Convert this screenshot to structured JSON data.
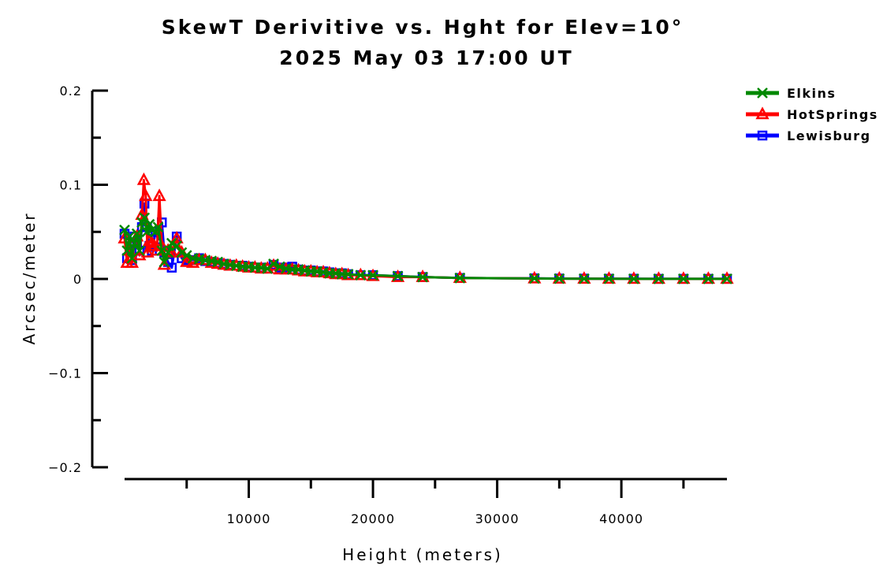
{
  "chart_data": {
    "type": "line",
    "title": "SkewT Derivitive vs. Hght for Elev=10°",
    "subtitle": "2025 May 03 17:00 UT",
    "xlabel": "Height (meters)",
    "ylabel": "Arcsec/meter",
    "xlim": [
      0,
      48500
    ],
    "ylim": [
      -0.2,
      0.2
    ],
    "x_ticks": [
      10000,
      20000,
      30000,
      40000
    ],
    "x_tick_labels": [
      "10000",
      "20000",
      "30000",
      "40000"
    ],
    "y_ticks": [
      -0.2,
      -0.1,
      0,
      0.1,
      0.2
    ],
    "y_tick_labels": [
      "−0.2",
      "−0.1",
      "0",
      "0.1",
      "0.2"
    ],
    "grid": false,
    "legend_position": "top-right",
    "series": [
      {
        "name": "Elkins",
        "color": "#008800",
        "marker": "x",
        "points": [
          [
            0,
            0.052
          ],
          [
            200,
            0.03
          ],
          [
            400,
            0.045
          ],
          [
            600,
            0.022
          ],
          [
            800,
            0.038
          ],
          [
            1000,
            0.048
          ],
          [
            1200,
            0.03
          ],
          [
            1400,
            0.06
          ],
          [
            1600,
            0.065
          ],
          [
            1800,
            0.05
          ],
          [
            2000,
            0.058
          ],
          [
            2200,
            0.052
          ],
          [
            2500,
            0.05
          ],
          [
            2700,
            0.055
          ],
          [
            3000,
            0.03
          ],
          [
            3200,
            0.018
          ],
          [
            3500,
            0.028
          ],
          [
            3800,
            0.038
          ],
          [
            4200,
            0.035
          ],
          [
            4600,
            0.028
          ],
          [
            5000,
            0.025
          ],
          [
            5500,
            0.022
          ],
          [
            6000,
            0.021
          ],
          [
            6500,
            0.02
          ],
          [
            7000,
            0.019
          ],
          [
            7500,
            0.018
          ],
          [
            8000,
            0.016
          ],
          [
            8500,
            0.015
          ],
          [
            9000,
            0.014
          ],
          [
            9500,
            0.013
          ],
          [
            10000,
            0.013
          ],
          [
            10500,
            0.012
          ],
          [
            11000,
            0.012
          ],
          [
            11500,
            0.011
          ],
          [
            12000,
            0.016
          ],
          [
            12500,
            0.013
          ],
          [
            13000,
            0.011
          ],
          [
            13500,
            0.01
          ],
          [
            14000,
            0.01
          ],
          [
            14500,
            0.009
          ],
          [
            15000,
            0.008
          ],
          [
            15500,
            0.008
          ],
          [
            16000,
            0.007
          ],
          [
            16500,
            0.006
          ],
          [
            17000,
            0.006
          ],
          [
            17500,
            0.005
          ],
          [
            18000,
            0.005
          ],
          [
            19000,
            0.004
          ],
          [
            20000,
            0.004
          ],
          [
            22000,
            0.003
          ],
          [
            24000,
            0.002
          ],
          [
            27000,
            0.001
          ],
          [
            33000,
            0.0005
          ],
          [
            35000,
            0.0003
          ],
          [
            37000,
            0.0002
          ],
          [
            39000,
            0.0002
          ],
          [
            41000,
            0.0001
          ],
          [
            43000,
            0.0001
          ],
          [
            45000,
            0.0001
          ],
          [
            47000,
            0.0001
          ],
          [
            48500,
            0.0001
          ]
        ]
      },
      {
        "name": "HotSprings",
        "color": "#ff0000",
        "marker": "triangle",
        "points": [
          [
            0,
            0.043
          ],
          [
            200,
            0.017
          ],
          [
            400,
            0.03
          ],
          [
            600,
            0.017
          ],
          [
            800,
            0.04
          ],
          [
            1000,
            0.045
          ],
          [
            1200,
            0.025
          ],
          [
            1400,
            0.068
          ],
          [
            1550,
            0.105
          ],
          [
            1700,
            0.088
          ],
          [
            1850,
            0.028
          ],
          [
            2000,
            0.04
          ],
          [
            2200,
            0.038
          ],
          [
            2400,
            0.035
          ],
          [
            2600,
            0.03
          ],
          [
            2800,
            0.088
          ],
          [
            3000,
            0.035
          ],
          [
            3200,
            0.015
          ],
          [
            3500,
            0.03
          ],
          [
            3800,
            0.028
          ],
          [
            4200,
            0.043
          ],
          [
            4600,
            0.028
          ],
          [
            5000,
            0.018
          ],
          [
            5500,
            0.017
          ],
          [
            6000,
            0.02
          ],
          [
            6500,
            0.02
          ],
          [
            7000,
            0.017
          ],
          [
            7500,
            0.016
          ],
          [
            8000,
            0.015
          ],
          [
            8500,
            0.014
          ],
          [
            9000,
            0.014
          ],
          [
            9500,
            0.013
          ],
          [
            10000,
            0.012
          ],
          [
            10500,
            0.012
          ],
          [
            11000,
            0.011
          ],
          [
            11500,
            0.011
          ],
          [
            12000,
            0.014
          ],
          [
            12500,
            0.01
          ],
          [
            13000,
            0.01
          ],
          [
            13500,
            0.01
          ],
          [
            14000,
            0.009
          ],
          [
            14500,
            0.008
          ],
          [
            15000,
            0.008
          ],
          [
            15500,
            0.007
          ],
          [
            16000,
            0.007
          ],
          [
            16500,
            0.006
          ],
          [
            17000,
            0.005
          ],
          [
            17500,
            0.005
          ],
          [
            18000,
            0.004
          ],
          [
            19000,
            0.004
          ],
          [
            20000,
            0.003
          ],
          [
            22000,
            0.002
          ],
          [
            24000,
            0.002
          ],
          [
            27000,
            0.001
          ],
          [
            33000,
            0.0005
          ],
          [
            35000,
            0.0003
          ],
          [
            37000,
            0.0002
          ],
          [
            39000,
            0.0002
          ],
          [
            41000,
            0.0001
          ],
          [
            43000,
            0.0001
          ],
          [
            45000,
            0.0001
          ],
          [
            47000,
            0.0001
          ],
          [
            48500,
            0.0001
          ]
        ]
      },
      {
        "name": "Lewisburg",
        "color": "#0000ff",
        "marker": "square",
        "points": [
          [
            0,
            0.048
          ],
          [
            200,
            0.022
          ],
          [
            400,
            0.035
          ],
          [
            600,
            0.02
          ],
          [
            800,
            0.045
          ],
          [
            1000,
            0.038
          ],
          [
            1200,
            0.03
          ],
          [
            1400,
            0.055
          ],
          [
            1600,
            0.08
          ],
          [
            1800,
            0.055
          ],
          [
            2000,
            0.035
          ],
          [
            2200,
            0.03
          ],
          [
            2500,
            0.05
          ],
          [
            2700,
            0.042
          ],
          [
            3000,
            0.06
          ],
          [
            3200,
            0.028
          ],
          [
            3500,
            0.018
          ],
          [
            3800,
            0.012
          ],
          [
            4200,
            0.045
          ],
          [
            4600,
            0.022
          ],
          [
            5000,
            0.02
          ],
          [
            5500,
            0.02
          ],
          [
            6000,
            0.022
          ],
          [
            6500,
            0.019
          ],
          [
            7000,
            0.018
          ],
          [
            7500,
            0.017
          ],
          [
            8000,
            0.016
          ],
          [
            8500,
            0.015
          ],
          [
            9000,
            0.014
          ],
          [
            9500,
            0.014
          ],
          [
            10000,
            0.013
          ],
          [
            10500,
            0.012
          ],
          [
            11000,
            0.012
          ],
          [
            11500,
            0.011
          ],
          [
            12000,
            0.015
          ],
          [
            12500,
            0.012
          ],
          [
            13000,
            0.012
          ],
          [
            13500,
            0.013
          ],
          [
            14000,
            0.01
          ],
          [
            14500,
            0.009
          ],
          [
            15000,
            0.009
          ],
          [
            15500,
            0.008
          ],
          [
            16000,
            0.008
          ],
          [
            16500,
            0.007
          ],
          [
            17000,
            0.006
          ],
          [
            17500,
            0.006
          ],
          [
            18000,
            0.005
          ],
          [
            19000,
            0.004
          ],
          [
            20000,
            0.004
          ],
          [
            22000,
            0.003
          ],
          [
            24000,
            0.002
          ],
          [
            27000,
            0.001
          ],
          [
            33000,
            0.0006
          ],
          [
            35000,
            0.0004
          ],
          [
            37000,
            0.0003
          ],
          [
            39000,
            0.0002
          ],
          [
            41000,
            0.0002
          ],
          [
            43000,
            0.0001
          ],
          [
            45000,
            0.0001
          ],
          [
            47000,
            0.0001
          ],
          [
            48500,
            0.0001
          ]
        ]
      }
    ]
  }
}
